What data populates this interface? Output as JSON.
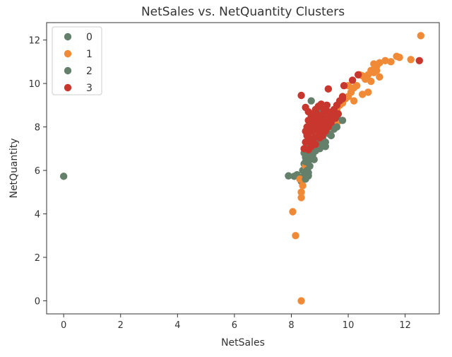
{
  "chart_data": {
    "type": "scatter",
    "title": "NetSales vs. NetQuantity Clusters",
    "xlabel": "NetSales",
    "ylabel": "NetQuantity",
    "xlim": [
      -0.6,
      13.2
    ],
    "ylim": [
      -0.6,
      12.8
    ],
    "xticks": [
      0,
      2,
      4,
      6,
      8,
      10,
      12
    ],
    "yticks": [
      0,
      2,
      4,
      6,
      8,
      10,
      12
    ],
    "grid": false,
    "legend_position": "top-left",
    "series": [
      {
        "name": "0",
        "color": "#64806a",
        "points": [
          [
            0.0,
            5.73
          ],
          [
            7.9,
            5.75
          ],
          [
            8.1,
            5.73
          ],
          [
            8.2,
            5.8
          ],
          [
            8.35,
            5.5
          ],
          [
            8.4,
            5.7
          ],
          [
            8.4,
            6.0
          ],
          [
            8.45,
            6.3
          ],
          [
            8.5,
            5.9
          ],
          [
            8.5,
            6.6
          ],
          [
            8.55,
            6.2
          ],
          [
            8.6,
            6.9
          ],
          [
            8.6,
            5.75
          ],
          [
            8.65,
            6.5
          ],
          [
            8.7,
            7.0
          ],
          [
            8.75,
            6.7
          ],
          [
            8.8,
            7.2
          ],
          [
            8.85,
            6.9
          ],
          [
            8.9,
            7.3
          ],
          [
            9.0,
            7.0
          ],
          [
            9.1,
            7.4
          ],
          [
            9.2,
            7.1
          ],
          [
            8.95,
            7.6
          ],
          [
            9.3,
            7.7
          ],
          [
            9.5,
            7.9
          ],
          [
            9.7,
            8.3
          ],
          [
            8.7,
            9.2
          ],
          [
            9.0,
            8.7
          ],
          [
            8.45,
            6.8
          ],
          [
            8.55,
            7.1
          ]
        ]
      },
      {
        "name": "1",
        "color": "#f08a36",
        "points": [
          [
            12.55,
            12.2
          ],
          [
            12.2,
            11.1
          ],
          [
            11.8,
            11.2
          ],
          [
            11.7,
            11.25
          ],
          [
            11.5,
            11.0
          ],
          [
            11.3,
            11.05
          ],
          [
            11.1,
            10.95
          ],
          [
            11.0,
            10.8
          ],
          [
            10.9,
            10.9
          ],
          [
            10.8,
            10.6
          ],
          [
            10.7,
            10.4
          ],
          [
            10.6,
            10.2
          ],
          [
            10.5,
            10.35
          ],
          [
            10.4,
            10.4
          ],
          [
            10.3,
            9.9
          ],
          [
            10.2,
            9.8
          ],
          [
            10.1,
            9.6
          ],
          [
            10.0,
            9.4
          ],
          [
            10.0,
            9.9
          ],
          [
            9.9,
            9.3
          ],
          [
            9.8,
            9.1
          ],
          [
            9.7,
            9.0
          ],
          [
            9.6,
            8.8
          ],
          [
            9.5,
            8.6
          ],
          [
            9.4,
            8.5
          ],
          [
            9.3,
            8.3
          ],
          [
            9.2,
            8.1
          ],
          [
            9.1,
            8.0
          ],
          [
            9.0,
            7.8
          ],
          [
            11.1,
            10.3
          ],
          [
            11.0,
            10.6
          ],
          [
            10.8,
            10.1
          ],
          [
            10.5,
            9.5
          ],
          [
            10.2,
            9.2
          ],
          [
            10.7,
            9.6
          ],
          [
            8.3,
            5.6
          ],
          [
            8.35,
            5.0
          ],
          [
            8.35,
            4.75
          ],
          [
            8.05,
            4.1
          ],
          [
            8.15,
            3.0
          ],
          [
            8.35,
            0.0
          ],
          [
            8.4,
            5.3
          ],
          [
            8.5,
            6.2
          ],
          [
            9.6,
            8.2
          ],
          [
            10.9,
            10.5
          ]
        ]
      },
      {
        "name": "2",
        "color": "#64806a",
        "points": [
          [
            8.5,
            6.4
          ],
          [
            8.55,
            6.0
          ],
          [
            8.6,
            6.6
          ],
          [
            8.65,
            6.2
          ],
          [
            8.7,
            6.8
          ],
          [
            8.75,
            7.1
          ],
          [
            8.8,
            6.5
          ],
          [
            8.9,
            7.0
          ],
          [
            9.0,
            7.2
          ],
          [
            9.1,
            7.5
          ],
          [
            9.2,
            7.3
          ],
          [
            9.4,
            7.6
          ],
          [
            9.6,
            8.0
          ],
          [
            9.8,
            8.3
          ],
          [
            8.6,
            5.9
          ],
          [
            8.5,
            5.6
          ]
        ]
      },
      {
        "name": "3",
        "color": "#c8372d",
        "points": [
          [
            12.5,
            11.05
          ],
          [
            10.35,
            10.4
          ],
          [
            10.15,
            10.15
          ],
          [
            9.85,
            9.9
          ],
          [
            9.3,
            9.75
          ],
          [
            9.8,
            9.4
          ],
          [
            8.35,
            9.45
          ],
          [
            8.5,
            8.9
          ],
          [
            8.6,
            8.7
          ],
          [
            8.7,
            8.5
          ],
          [
            8.8,
            8.3
          ],
          [
            8.9,
            8.6
          ],
          [
            9.0,
            8.4
          ],
          [
            9.1,
            8.9
          ],
          [
            9.2,
            8.2
          ],
          [
            9.3,
            8.7
          ],
          [
            9.4,
            8.5
          ],
          [
            9.5,
            8.8
          ],
          [
            9.6,
            9.0
          ],
          [
            9.7,
            9.2
          ],
          [
            9.8,
            9.3
          ],
          [
            8.55,
            8.0
          ],
          [
            8.6,
            7.7
          ],
          [
            8.65,
            7.4
          ],
          [
            8.7,
            7.1
          ],
          [
            8.75,
            7.8
          ],
          [
            8.8,
            7.5
          ],
          [
            8.85,
            8.1
          ],
          [
            8.9,
            7.9
          ],
          [
            8.95,
            7.6
          ],
          [
            9.0,
            8.0
          ],
          [
            9.05,
            7.7
          ],
          [
            9.1,
            8.2
          ],
          [
            9.15,
            7.9
          ],
          [
            9.2,
            8.4
          ],
          [
            9.25,
            8.1
          ],
          [
            9.35,
            8.3
          ],
          [
            9.45,
            8.6
          ],
          [
            8.5,
            7.3
          ],
          [
            8.55,
            7.6
          ],
          [
            8.6,
            6.95
          ],
          [
            8.65,
            7.95
          ],
          [
            8.7,
            8.25
          ],
          [
            8.75,
            7.3
          ],
          [
            8.8,
            8.0
          ],
          [
            8.85,
            7.2
          ],
          [
            8.9,
            8.4
          ],
          [
            8.95,
            8.2
          ],
          [
            9.0,
            7.5
          ],
          [
            9.05,
            8.5
          ],
          [
            9.1,
            7.6
          ],
          [
            9.2,
            7.8
          ],
          [
            9.3,
            8.0
          ],
          [
            9.4,
            8.2
          ],
          [
            9.55,
            8.4
          ],
          [
            9.65,
            8.6
          ],
          [
            8.75,
            8.6
          ],
          [
            8.85,
            8.8
          ],
          [
            8.95,
            8.95
          ],
          [
            9.05,
            9.05
          ],
          [
            9.15,
            8.7
          ],
          [
            9.25,
            9.0
          ],
          [
            8.5,
            7.8
          ],
          [
            8.45,
            7.0
          ],
          [
            8.6,
            8.3
          ]
        ]
      }
    ]
  }
}
